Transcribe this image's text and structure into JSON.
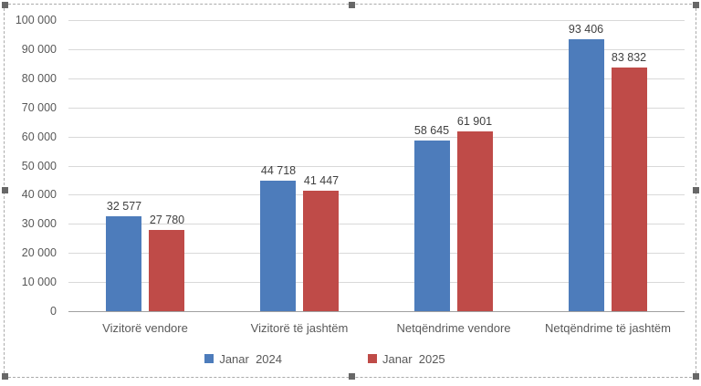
{
  "chart_data": {
    "type": "bar",
    "title": "",
    "xlabel": "",
    "ylabel": "",
    "categories": [
      "Vizitorë vendore",
      "Vizitorë të jashtëm",
      "Netqëndrime vendore",
      "Netqëndrime të jashtëm"
    ],
    "series": [
      {
        "name": "Janar  2024",
        "color": "#4d7cbb",
        "values": [
          32577,
          44718,
          58645,
          93406
        ],
        "value_labels": [
          "32 577",
          "44 718",
          "58 645",
          "93 406"
        ]
      },
      {
        "name": "Janar  2025",
        "color": "#bf4b48",
        "values": [
          27780,
          41447,
          61901,
          83832
        ],
        "value_labels": [
          "27 780",
          "41 447",
          "61 901",
          "83 832"
        ]
      }
    ],
    "ylim": [
      0,
      100000
    ],
    "ytick_step": 10000,
    "ytick_labels": [
      "0",
      "10 000",
      "20 000",
      "30 000",
      "40 000",
      "50 000",
      "60 000",
      "70 000",
      "80 000",
      "90 000",
      "100 000"
    ],
    "grid": true,
    "legend_position": "bottom"
  },
  "style_colors": {
    "gridline": "#d9d9d9",
    "axis_line": "#a0a0a0",
    "tick_text": "#595959",
    "value_text": "#404040",
    "selection_border": "#ababab",
    "selection_handle": "#676767"
  }
}
